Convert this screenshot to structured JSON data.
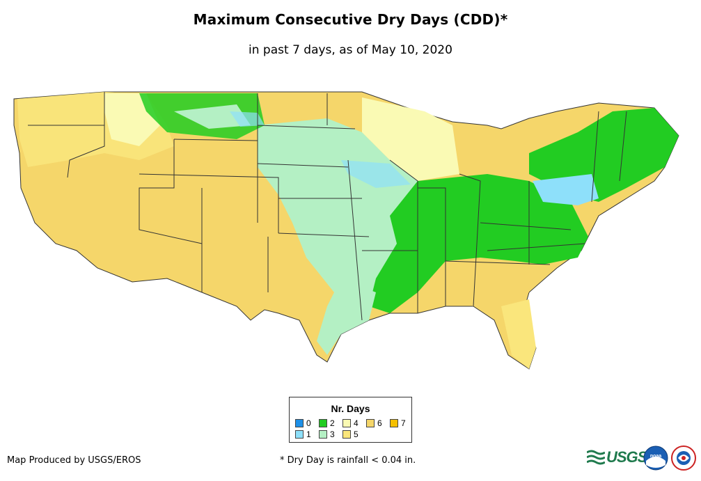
{
  "title": "Maximum Consecutive Dry Days (CDD)*",
  "subtitle": "in past 7 days, as of May 10, 2020",
  "legend": {
    "title": "Nr. Days",
    "items": [
      {
        "label": "0",
        "color": "#1e90e8"
      },
      {
        "label": "1",
        "color": "#8ee0fa"
      },
      {
        "label": "2",
        "color": "#22cc22"
      },
      {
        "label": "3",
        "color": "#b4f0c4"
      },
      {
        "label": "4",
        "color": "#fafab4"
      },
      {
        "label": "5",
        "color": "#fae67c"
      },
      {
        "label": "6",
        "color": "#f5d66a"
      },
      {
        "label": "7",
        "color": "#f5c000"
      }
    ]
  },
  "credit": "Map Produced by USGS/EROS",
  "footnote": "* Dry Day is rainfall < 0.04 in.",
  "logos": {
    "usgs": "USGS",
    "noaa": "noaa"
  }
}
